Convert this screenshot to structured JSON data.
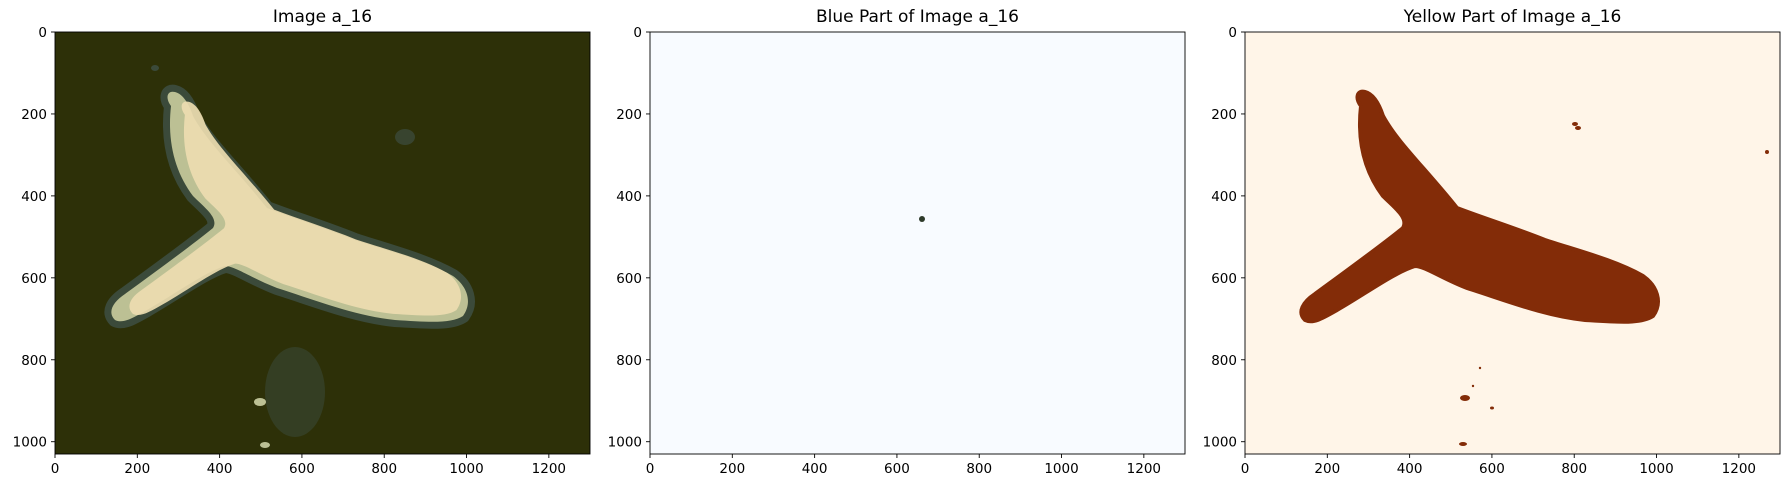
{
  "panels": [
    {
      "title": "Image a_16",
      "x_ticks": [
        "0",
        "200",
        "400",
        "600",
        "800",
        "1000",
        "1200"
      ],
      "y_ticks": [
        "0",
        "200",
        "400",
        "600",
        "800",
        "1000"
      ],
      "content": "photo"
    },
    {
      "title": "Blue Part of Image a_16",
      "x_ticks": [
        "0",
        "200",
        "400",
        "600",
        "800",
        "1000",
        "1200"
      ],
      "y_ticks": [
        "0",
        "200",
        "400",
        "600",
        "800",
        "1000"
      ],
      "content": "blue-mask"
    },
    {
      "title": "Yellow Part of Image a_16",
      "x_ticks": [
        "0",
        "200",
        "400",
        "600",
        "800",
        "1000",
        "1200"
      ],
      "y_ticks": [
        "0",
        "200",
        "400",
        "600",
        "800",
        "1000"
      ],
      "content": "yellow-mask"
    }
  ],
  "colors": {
    "photo_background": "#2d3008",
    "photo_shadow": "#3b4a3a",
    "photo_mid": "#bcc094",
    "photo_light": "#eddcb0",
    "blue_background": "#f8fbff",
    "blue_dot": "#2e3a2a",
    "yellow_background": "#fff5e8",
    "yellow_shape": "#832c08"
  }
}
